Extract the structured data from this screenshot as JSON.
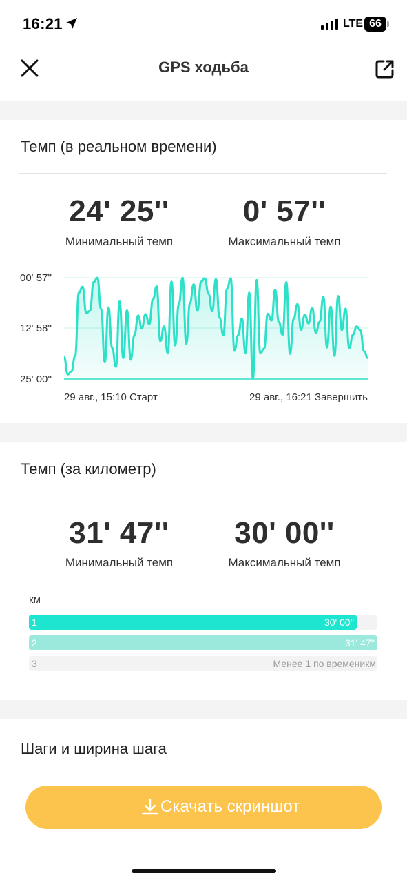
{
  "status_bar": {
    "time": "16:21",
    "network": "LTE",
    "battery": "66"
  },
  "header": {
    "title": "GPS ходьба"
  },
  "realtime": {
    "title": "Темп (в реальном времени)",
    "min_value": "24' 25''",
    "min_label": "Минимальный темп",
    "max_value": "0' 57''",
    "max_label": "Максимальный темп"
  },
  "chart_data": {
    "type": "area",
    "title": "",
    "xlabel": "",
    "ylabel": "",
    "y_tick_labels": [
      "00' 57''",
      "12' 58''",
      "25' 00''"
    ],
    "x_start_label": "29 авг., 15:10 Старт",
    "x_end_label": "29 авг., 16:21 Завершить",
    "y_axis": "pace in minutes per km, reversed (fast pace at top)",
    "ylim": [
      0.95,
      25.0
    ],
    "grid": true,
    "color": "#2de0c8",
    "values": [
      19.7,
      23.9,
      23.2,
      19.5,
      4.5,
      3.1,
      9.4,
      8.8,
      2.0,
      0.95,
      8.4,
      21.0,
      8.0,
      17.6,
      22.1,
      6.6,
      20.0,
      8.7,
      20.4,
      14.6,
      9.9,
      13.0,
      9.6,
      12.0,
      6.1,
      3.0,
      16.0,
      12.5,
      18.9,
      1.9,
      17.0,
      7.2,
      1.0,
      16.6,
      7.0,
      2.5,
      8.8,
      1.9,
      1.1,
      4.7,
      8.9,
      1.3,
      10.4,
      14.6,
      3.6,
      1.1,
      18.3,
      14.6,
      10.6,
      18.9,
      4.5,
      24.8,
      1.5,
      18.9,
      17.8,
      9.5,
      11.1,
      3.8,
      11.5,
      14.5,
      2.0,
      19.0,
      10.7,
      7.2,
      13.3,
      9.7,
      11.8,
      8.1,
      14.0,
      11.4,
      5.5,
      17.5,
      7.8,
      19.5,
      5.3,
      13.4,
      8.3,
      17.6,
      14.5,
      12.5,
      13.4,
      18.4,
      20.0
    ]
  },
  "per_km": {
    "title": "Темп (за километр)",
    "min_value": "31' 47''",
    "min_label": "Минимальный темп",
    "max_value": "30' 00''",
    "max_label": "Максимальный темп",
    "unit_label": "км",
    "rows": [
      {
        "index": "1",
        "value": "30' 00''",
        "fill": 0.94,
        "color": "#1de5cf"
      },
      {
        "index": "2",
        "value": "31' 47''",
        "fill": 1.0,
        "color": "#9ae9dc"
      },
      {
        "index": "3",
        "value": "Менее 1 по временикм",
        "fill": 0.0,
        "color": "#f3f3f3"
      }
    ]
  },
  "steps": {
    "title": "Шаги и ширина шага"
  },
  "download": {
    "label": "Скачать скриншот"
  }
}
